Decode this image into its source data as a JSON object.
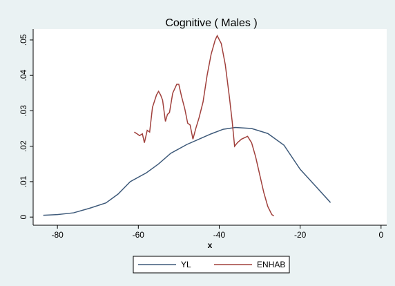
{
  "chart_data": {
    "type": "line",
    "title": "Cognitive ( Males )",
    "xlabel": "x",
    "xlim": [
      -86,
      1.4
    ],
    "xticks": [
      -80,
      -60,
      -40,
      -20,
      0
    ],
    "ylim": [
      -0.0023,
      0.0531
    ],
    "yticks": [
      0,
      {
        "value": 0.01,
        "label": ".01"
      },
      {
        "value": 0.02,
        "label": ".02"
      },
      {
        "value": 0.03,
        "label": ".03"
      },
      {
        "value": 0.04,
        "label": ".04"
      },
      {
        "value": 0.05,
        "label": ".05"
      }
    ],
    "grid": false,
    "legend": "bottom",
    "series": [
      {
        "name": "YL",
        "color": "#3e5a7a",
        "x": [
          -83.5,
          -80,
          -76,
          -72,
          -68,
          -65,
          -62,
          -58,
          -55,
          -52,
          -48,
          -45,
          -42,
          -39,
          -36,
          -32,
          -28,
          -24,
          -20,
          -16,
          -12.5
        ],
        "values": [
          0.0005,
          0.0007,
          0.0012,
          0.0025,
          0.004,
          0.0065,
          0.01,
          0.0125,
          0.015,
          0.018,
          0.0205,
          0.022,
          0.0235,
          0.0248,
          0.0253,
          0.025,
          0.0236,
          0.0203,
          0.0135,
          0.0085,
          0.0041
        ]
      },
      {
        "name": "ENHAB",
        "color": "#a0403c",
        "x": [
          -61,
          -60.3,
          -59.7,
          -59,
          -58.5,
          -57.8,
          -57.2,
          -56.5,
          -55.5,
          -55,
          -54.5,
          -54,
          -53.3,
          -52.8,
          -52.3,
          -51.5,
          -50.5,
          -50,
          -49.3,
          -48.5,
          -47.8,
          -47.2,
          -46.5,
          -45.8,
          -45,
          -44,
          -43,
          -42,
          -41,
          -40.5,
          -39.5,
          -38.5,
          -37.5,
          -36.8,
          -36.2,
          -35.5,
          -34.5,
          -33,
          -32,
          -31,
          -30,
          -29,
          -28,
          -27,
          -26.5
        ],
        "values": [
          0.024,
          0.0235,
          0.023,
          0.0235,
          0.021,
          0.0245,
          0.024,
          0.031,
          0.0345,
          0.0355,
          0.0345,
          0.033,
          0.027,
          0.029,
          0.0295,
          0.035,
          0.0375,
          0.0375,
          0.034,
          0.0305,
          0.0265,
          0.026,
          0.022,
          0.025,
          0.028,
          0.0325,
          0.04,
          0.046,
          0.05,
          0.0512,
          0.049,
          0.043,
          0.034,
          0.027,
          0.02,
          0.021,
          0.022,
          0.0228,
          0.021,
          0.017,
          0.012,
          0.007,
          0.003,
          0.0007,
          0.0003
        ]
      }
    ]
  }
}
